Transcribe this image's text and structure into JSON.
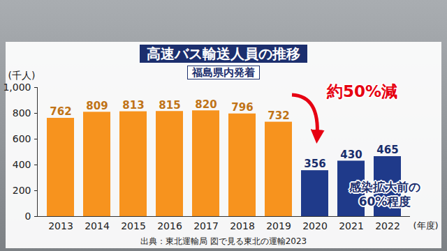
{
  "chart_data": {
    "type": "bar",
    "title": "高速バス輸送人員の推移",
    "subtitle": "福島県内発着",
    "source": "出典：東北運輸局 図で見る東北の運輸2023",
    "y_label": "(千人)",
    "x_label": "(年度)",
    "categories": [
      "2013",
      "2014",
      "2015",
      "2016",
      "2017",
      "2018",
      "2019",
      "2020",
      "2021",
      "2022"
    ],
    "values": [
      762,
      809,
      813,
      815,
      820,
      796,
      732,
      356,
      430,
      465
    ],
    "colors": [
      "#f7931e",
      "#f7931e",
      "#f7931e",
      "#f7931e",
      "#f7931e",
      "#f7931e",
      "#f7931e",
      "#1f3a8a",
      "#1f3a8a",
      "#1f3a8a"
    ],
    "ylim": [
      0,
      1000
    ],
    "yticks": [
      0,
      200,
      400,
      600,
      800,
      1000
    ],
    "grid": false,
    "data_labels": true,
    "annotations": [
      "約50%減",
      "感染拡大前の60%程度"
    ]
  }
}
